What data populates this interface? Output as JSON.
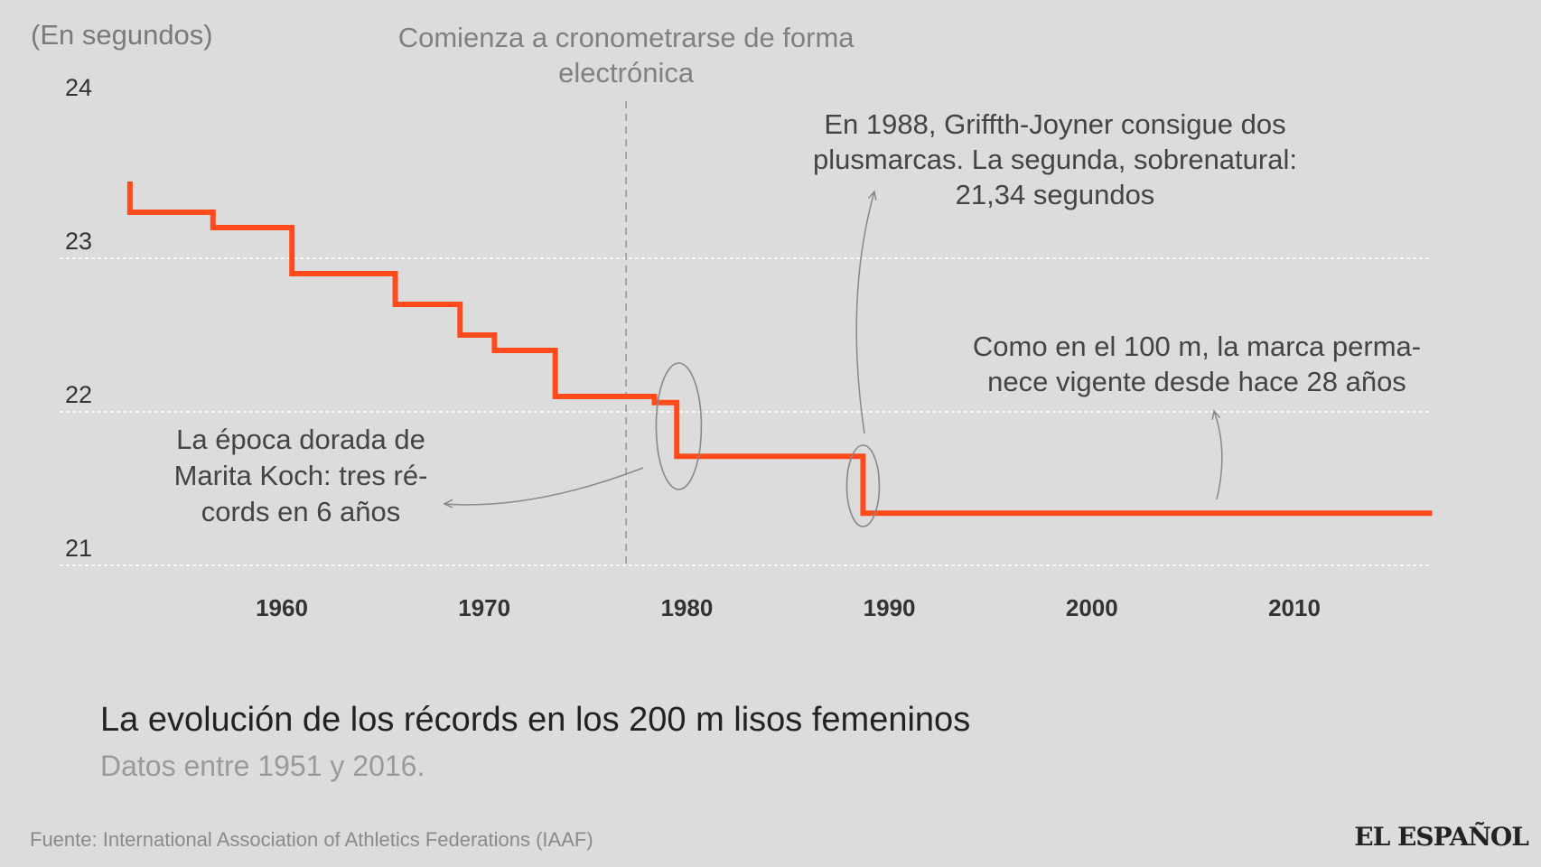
{
  "chart_data": {
    "type": "line",
    "step": true,
    "unit_label": "(En segundos)",
    "x_ticks": [
      1960,
      1970,
      1980,
      1990,
      2000,
      2010
    ],
    "y_ticks": [
      21,
      22,
      23,
      24
    ],
    "xlim": [
      1951,
      2017
    ],
    "ylim": [
      21,
      24
    ],
    "grid": true,
    "series": [
      {
        "name": "Récord mundial 200 m lisos femeninos",
        "color": "#ff4a1c",
        "points": [
          {
            "x": 1952.5,
            "y": 23.5
          },
          {
            "x": 1952.5,
            "y": 23.3
          },
          {
            "x": 1956.6,
            "y": 23.2
          },
          {
            "x": 1960.5,
            "y": 22.9
          },
          {
            "x": 1965.6,
            "y": 22.7
          },
          {
            "x": 1968.8,
            "y": 22.5
          },
          {
            "x": 1970.5,
            "y": 22.4
          },
          {
            "x": 1973.5,
            "y": 22.1
          },
          {
            "x": 1978.4,
            "y": 22.06
          },
          {
            "x": 1979.5,
            "y": 21.71
          },
          {
            "x": 1988.7,
            "y": 21.34
          },
          {
            "x": 2016.8,
            "y": 21.34
          }
        ]
      }
    ],
    "reference_line": {
      "x": 1977,
      "label": "Comienza a cronometrarse de forma electrónica"
    },
    "annotations": [
      {
        "id": "koch",
        "lines": [
          "La época dorada de",
          "Marita Koch: tres ré-",
          "cords en 6 años"
        ]
      },
      {
        "id": "flojo",
        "lines": [
          "En 1988, Griffth-Joyner consigue dos",
          "plusmarcas. La segunda, sobrenatural:",
          "21,34 segundos"
        ]
      },
      {
        "id": "vigente",
        "lines": [
          "Como en el 100 m, la marca perma-",
          "nece vigente desde hace 28 años"
        ]
      }
    ]
  },
  "title": "La evolución de los récords en los 200 m lisos femeninos",
  "subtitle": "Datos entre 1951 y 2016.",
  "source": "Fuente: International Association of Athletics Federations (IAAF)",
  "logo": "EL ESPAÑOL",
  "colors": {
    "background": "#dcdcdc",
    "line": "#ff4a1c",
    "grid": "#ffffff",
    "annotation_text": "#444444",
    "annotation_stroke": "#888888"
  }
}
